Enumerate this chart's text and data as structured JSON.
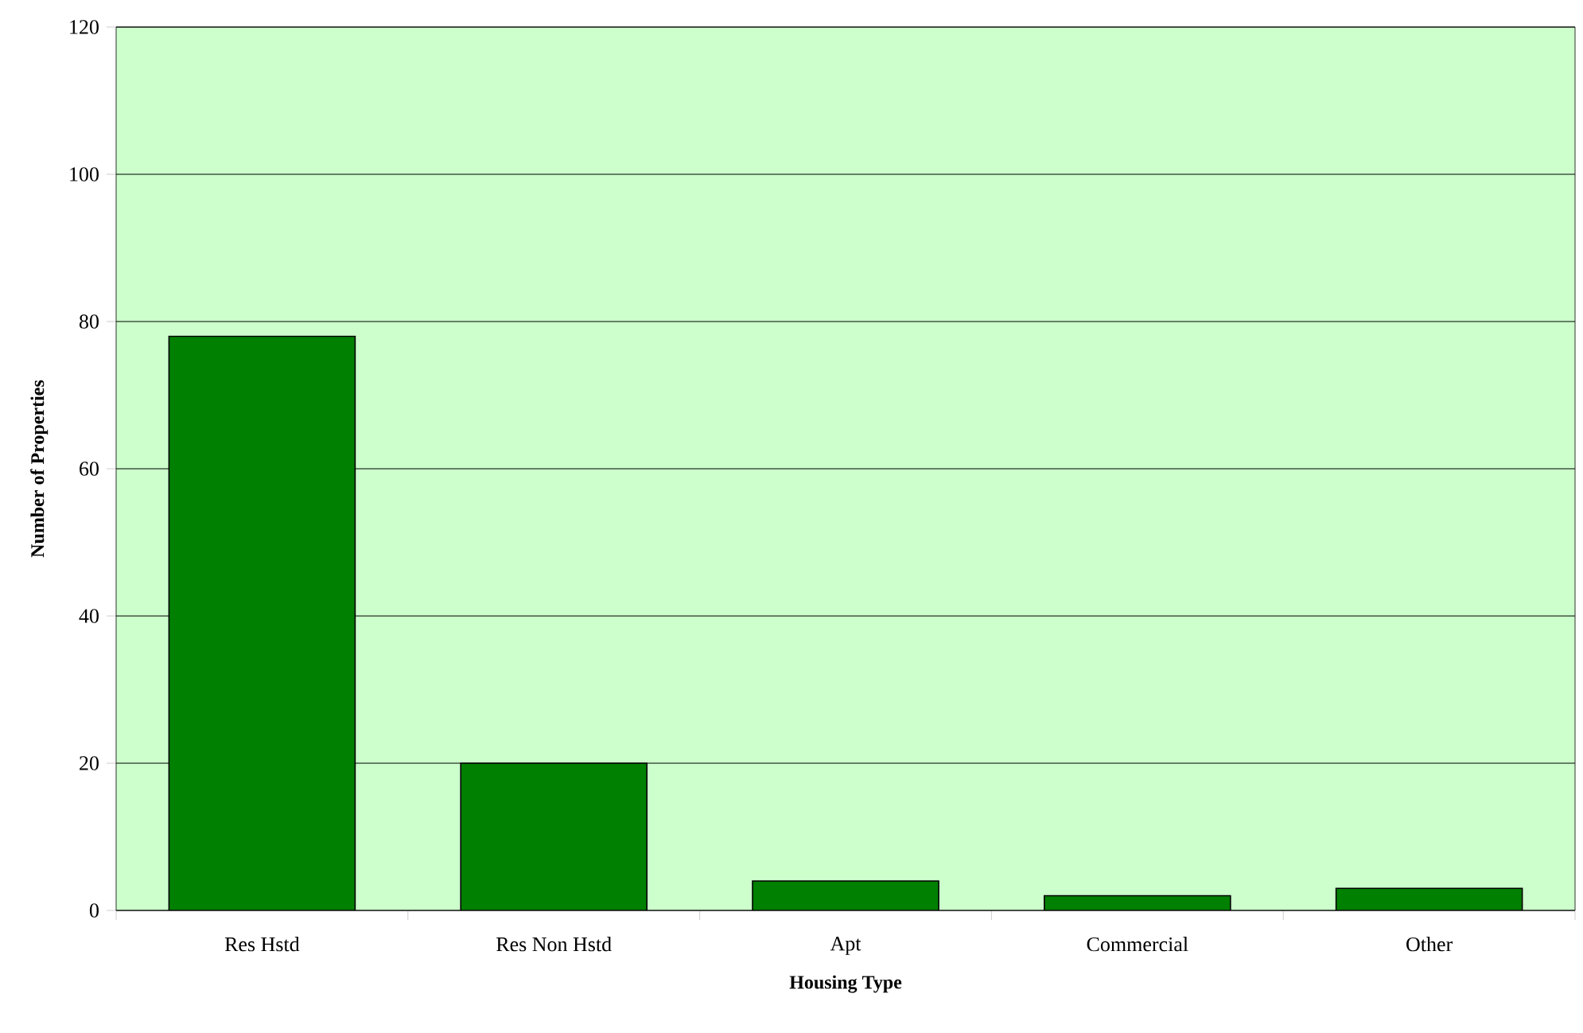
{
  "chart_data": {
    "type": "bar",
    "xlabel": "Housing Type",
    "ylabel": "Number of Properties",
    "categories": [
      "Res Hstd",
      "Res Non Hstd",
      "Apt",
      "Commercial",
      "Other"
    ],
    "values": [
      78,
      20,
      4,
      2,
      3
    ],
    "color": "#008000",
    "ylim": [
      0,
      120
    ],
    "yticks": [
      0,
      20,
      40,
      60,
      80,
      100,
      120
    ],
    "grid": "y"
  }
}
